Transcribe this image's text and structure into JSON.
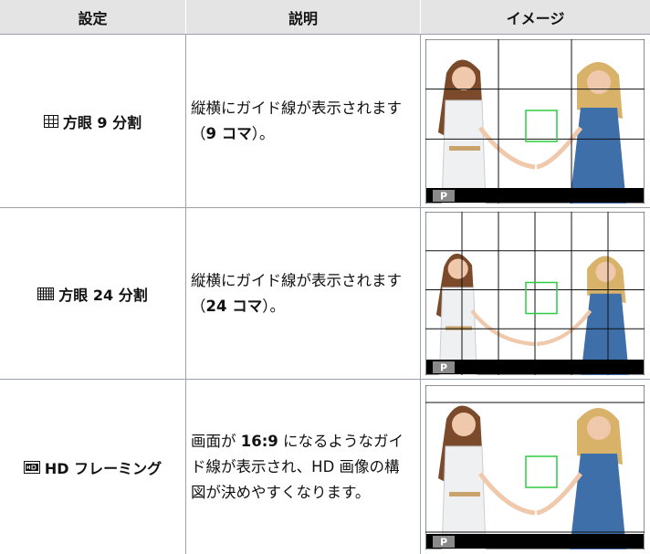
{
  "table": {
    "header": [
      "設定",
      "説明",
      "イメージ"
    ],
    "rows": [
      {
        "setting": "方眼 9 分割",
        "description": [
          "縦横にガイド線が表示されます（",
          "9 コマ",
          "）。"
        ],
        "badge": "P"
      },
      {
        "setting": "方眼 24 分割",
        "description": [
          "縦横にガイド線が表示されます（",
          "24 コマ",
          "）。"
        ],
        "badge": "P"
      },
      {
        "setting": "HD フレーミング",
        "description": [
          "画面が ",
          "16:9",
          " になるようなガイド線が表示され、HD 画像の構図が決めやすくなります。"
        ],
        "badge": "P"
      }
    ]
  }
}
